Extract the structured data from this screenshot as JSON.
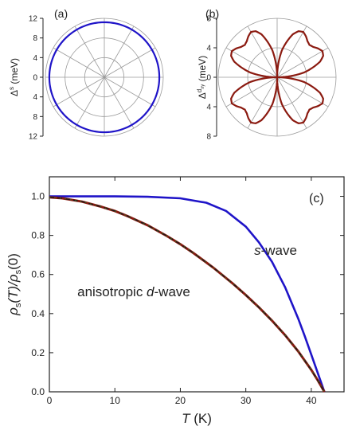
{
  "colors": {
    "s_wave": "#1f14c8",
    "d_wave": "#8b1a10",
    "d_wave_dash": "#1a1a1a",
    "d_wave_dot": "#2f6b1f",
    "axis": "#222222",
    "polar_grid": "#9a9a9a"
  },
  "panels": {
    "a": {
      "label": "(a)",
      "ylabel_main": "Δ",
      "ylabel_sup": "s",
      "ylabel_unit": " (meV)"
    },
    "b": {
      "label": "(b)",
      "ylabel_main": "Δ",
      "ylabel_sup": "d",
      "ylabel_subsup": "xy",
      "ylabel_unit": " (meV)"
    },
    "c": {
      "label": "(c)",
      "xlabel_main": "T",
      "xlabel_unit": " (K)",
      "ylabel": {
        "rho1": "ρ",
        "sub1": "s",
        "t1": "(T)/",
        "rho2": "ρ",
        "sub2": "s",
        "t2": "(0)"
      },
      "annotation_s": {
        "italic": "s",
        "rest": "-wave"
      },
      "annotation_d": {
        "pre": "anisotropic ",
        "italic": "d",
        "rest": "-wave"
      }
    }
  },
  "chart_data": [
    {
      "panel": "a",
      "type": "polar",
      "tick_labels": [
        "12",
        "8",
        "4",
        "0",
        "4",
        "8",
        "12"
      ],
      "radial_range": [
        0,
        12
      ],
      "radial_ticks": [
        4,
        8,
        12
      ],
      "angular_spokes_deg": 30,
      "series": [
        {
          "theta_deg": [
            0,
            30,
            60,
            90,
            120,
            150,
            180,
            210,
            240,
            270,
            300,
            330,
            360
          ],
          "r": [
            11.2,
            11.2,
            11.2,
            11.2,
            11.2,
            11.2,
            11.2,
            11.2,
            11.2,
            11.2,
            11.2,
            11.2,
            11.2
          ]
        }
      ]
    },
    {
      "panel": "b",
      "type": "polar",
      "tick_labels": [
        "8",
        "4",
        "0",
        "4",
        "8"
      ],
      "radial_range": [
        0,
        8
      ],
      "radial_ticks": [
        4,
        8
      ],
      "angular_spokes_deg": 30,
      "series": [
        {
          "theta_deg": [
            0,
            10,
            20,
            25,
            30,
            35,
            40,
            45,
            50,
            55,
            60,
            65,
            70,
            80,
            90
          ],
          "r": [
            0.0,
            3.7,
            6.2,
            6.9,
            7.1,
            6.8,
            6.4,
            6.2,
            6.4,
            6.8,
            7.1,
            6.9,
            6.2,
            3.7,
            0.0
          ],
          "symmetry": "four lobes repeated every 90 degrees"
        }
      ]
    },
    {
      "panel": "c",
      "type": "line",
      "xlim": [
        0,
        45
      ],
      "ylim": [
        0,
        1.1
      ],
      "xticks": [
        0,
        10,
        20,
        30,
        40
      ],
      "yticks": [
        0.0,
        0.2,
        0.4,
        0.6,
        0.8,
        1.0
      ],
      "series": [
        {
          "key": "s_wave",
          "x": [
            0,
            5,
            10,
            15,
            20,
            24,
            27,
            30,
            32,
            34,
            36,
            38,
            39,
            40,
            41,
            42
          ],
          "y": [
            1.0,
            1.0,
            1.0,
            0.998,
            0.99,
            0.967,
            0.925,
            0.845,
            0.765,
            0.665,
            0.535,
            0.375,
            0.285,
            0.19,
            0.095,
            0.0
          ]
        },
        {
          "key": "d_wave",
          "x": [
            0,
            2,
            5,
            8,
            10,
            12,
            15,
            18,
            20,
            22,
            25,
            28,
            30,
            32,
            34,
            36,
            38,
            40,
            41,
            42
          ],
          "y": [
            0.995,
            0.99,
            0.973,
            0.946,
            0.925,
            0.898,
            0.852,
            0.796,
            0.755,
            0.71,
            0.636,
            0.554,
            0.495,
            0.432,
            0.364,
            0.29,
            0.207,
            0.112,
            0.058,
            0.0
          ]
        }
      ]
    }
  ]
}
